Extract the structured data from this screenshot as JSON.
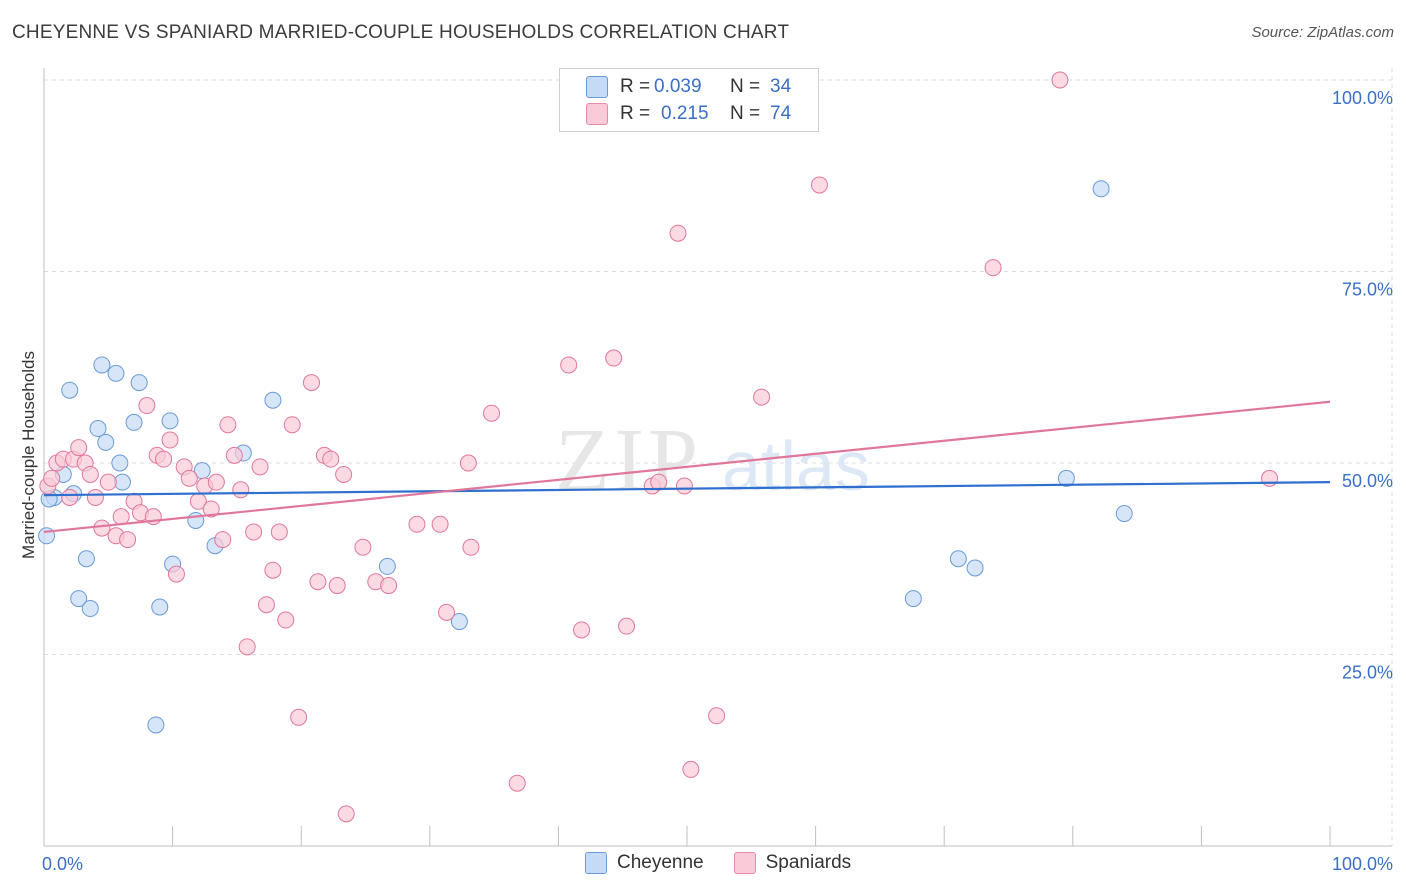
{
  "header": {
    "title": "CHEYENNE VS SPANIARD MARRIED-COUPLE HOUSEHOLDS CORRELATION CHART",
    "source": "Source: ZipAtlas.com"
  },
  "legend": {
    "rows": [
      {
        "r_label": "R =",
        "r_value": "0.039",
        "n_label": "N =",
        "n_value": "34",
        "color": "#aac8f0",
        "border": "#6a9ad8"
      },
      {
        "r_label": "R =",
        "r_value": "0.215",
        "n_label": "N =",
        "n_value": "74",
        "color": "#f8c0d0",
        "border": "#e88aa8"
      }
    ]
  },
  "bottom_legend": {
    "items": [
      {
        "label": "Cheyenne",
        "color": "#aac8f0",
        "border": "#6a9ad8"
      },
      {
        "label": "Spaniards",
        "color": "#f8c0d0",
        "border": "#e88aa8"
      }
    ]
  },
  "watermark": {
    "zip": "ZIP",
    "atlas": "atlas"
  },
  "chart_data": {
    "type": "scatter",
    "title": "CHEYENNE VS SPANIARD MARRIED-COUPLE HOUSEHOLDS CORRELATION CHART",
    "xlabel": "",
    "ylabel": "Married-couple Households",
    "xlim": [
      0,
      100
    ],
    "ylim": [
      0,
      100
    ],
    "x_tick_labels": [
      "0.0%",
      "100.0%"
    ],
    "y_tick_labels": [
      "25.0%",
      "50.0%",
      "75.0%",
      "100.0%"
    ],
    "y_ticks": [
      25,
      50,
      75,
      100
    ],
    "grid": true,
    "legend_position": "top-center",
    "series": [
      {
        "name": "Cheyenne",
        "color": "#6a9ad8",
        "fill": "#c5daf5",
        "trend": [
          [
            0,
            45.8
          ],
          [
            100,
            47.5
          ]
        ],
        "points": [
          [
            0.2,
            40.5
          ],
          [
            0.8,
            45.5
          ],
          [
            1.5,
            48.5
          ],
          [
            2.0,
            59.5
          ],
          [
            2.3,
            46.0
          ],
          [
            2.7,
            32.3
          ],
          [
            3.3,
            37.5
          ],
          [
            3.6,
            31.0
          ],
          [
            4.2,
            54.5
          ],
          [
            4.8,
            52.7
          ],
          [
            4.5,
            62.8
          ],
          [
            5.6,
            61.7
          ],
          [
            5.9,
            50.0
          ],
          [
            6.1,
            47.5
          ],
          [
            7.0,
            55.3
          ],
          [
            7.4,
            60.5
          ],
          [
            8.7,
            15.8
          ],
          [
            9.0,
            31.2
          ],
          [
            9.8,
            55.5
          ],
          [
            10.0,
            36.8
          ],
          [
            11.8,
            42.5
          ],
          [
            12.3,
            49.0
          ],
          [
            13.3,
            39.2
          ],
          [
            15.5,
            51.3
          ],
          [
            17.8,
            58.2
          ],
          [
            26.7,
            36.5
          ],
          [
            32.3,
            29.3
          ],
          [
            67.6,
            32.3
          ],
          [
            71.1,
            37.5
          ],
          [
            72.4,
            36.3
          ],
          [
            79.5,
            48.0
          ],
          [
            82.2,
            85.8
          ],
          [
            84.0,
            43.4
          ],
          [
            0.4,
            45.3
          ]
        ]
      },
      {
        "name": "Spaniards",
        "color": "#e0779a",
        "fill": "#f9cbd9",
        "trend": [
          [
            0,
            41.0
          ],
          [
            100,
            58.0
          ]
        ],
        "points": [
          [
            0.3,
            47.0
          ],
          [
            0.6,
            48.0
          ],
          [
            1.0,
            50.0
          ],
          [
            1.5,
            50.5
          ],
          [
            2.0,
            45.5
          ],
          [
            2.3,
            50.5
          ],
          [
            2.7,
            52.0
          ],
          [
            3.2,
            50.0
          ],
          [
            3.6,
            48.5
          ],
          [
            4.0,
            45.5
          ],
          [
            4.5,
            41.5
          ],
          [
            5.0,
            47.5
          ],
          [
            5.6,
            40.5
          ],
          [
            6.0,
            43.0
          ],
          [
            6.5,
            40.0
          ],
          [
            7.0,
            45.0
          ],
          [
            7.5,
            43.5
          ],
          [
            8.0,
            57.5
          ],
          [
            8.5,
            43.0
          ],
          [
            8.8,
            51.0
          ],
          [
            9.3,
            50.5
          ],
          [
            9.8,
            53.0
          ],
          [
            10.3,
            35.5
          ],
          [
            10.9,
            49.5
          ],
          [
            11.3,
            48.0
          ],
          [
            12.0,
            45.0
          ],
          [
            12.5,
            47.0
          ],
          [
            13.0,
            44.0
          ],
          [
            13.4,
            47.5
          ],
          [
            13.9,
            40.0
          ],
          [
            14.3,
            55.0
          ],
          [
            14.8,
            51.0
          ],
          [
            15.3,
            46.5
          ],
          [
            15.8,
            26.0
          ],
          [
            16.3,
            41.0
          ],
          [
            16.8,
            49.5
          ],
          [
            17.3,
            31.5
          ],
          [
            17.8,
            36.0
          ],
          [
            18.3,
            41.0
          ],
          [
            18.8,
            29.5
          ],
          [
            19.3,
            55.0
          ],
          [
            19.8,
            16.8
          ],
          [
            20.8,
            60.5
          ],
          [
            21.3,
            34.5
          ],
          [
            21.8,
            51.0
          ],
          [
            22.8,
            34.0
          ],
          [
            22.3,
            50.5
          ],
          [
            23.3,
            48.5
          ],
          [
            23.5,
            4.2
          ],
          [
            24.8,
            39.0
          ],
          [
            25.8,
            34.5
          ],
          [
            26.8,
            34.0
          ],
          [
            29.0,
            42.0
          ],
          [
            30.8,
            42.0
          ],
          [
            31.3,
            30.5
          ],
          [
            33.0,
            50.0
          ],
          [
            33.2,
            39.0
          ],
          [
            34.8,
            56.5
          ],
          [
            36.8,
            8.2
          ],
          [
            40.8,
            62.8
          ],
          [
            41.8,
            28.2
          ],
          [
            44.3,
            63.7
          ],
          [
            45.3,
            28.7
          ],
          [
            47.3,
            47.0
          ],
          [
            47.8,
            47.5
          ],
          [
            49.3,
            80.0
          ],
          [
            49.8,
            47.0
          ],
          [
            50.3,
            10.0
          ],
          [
            52.3,
            17.0
          ],
          [
            55.8,
            58.6
          ],
          [
            60.3,
            86.3
          ],
          [
            73.8,
            75.5
          ],
          [
            79.0,
            100.0
          ],
          [
            95.3,
            48.0
          ]
        ]
      }
    ]
  }
}
